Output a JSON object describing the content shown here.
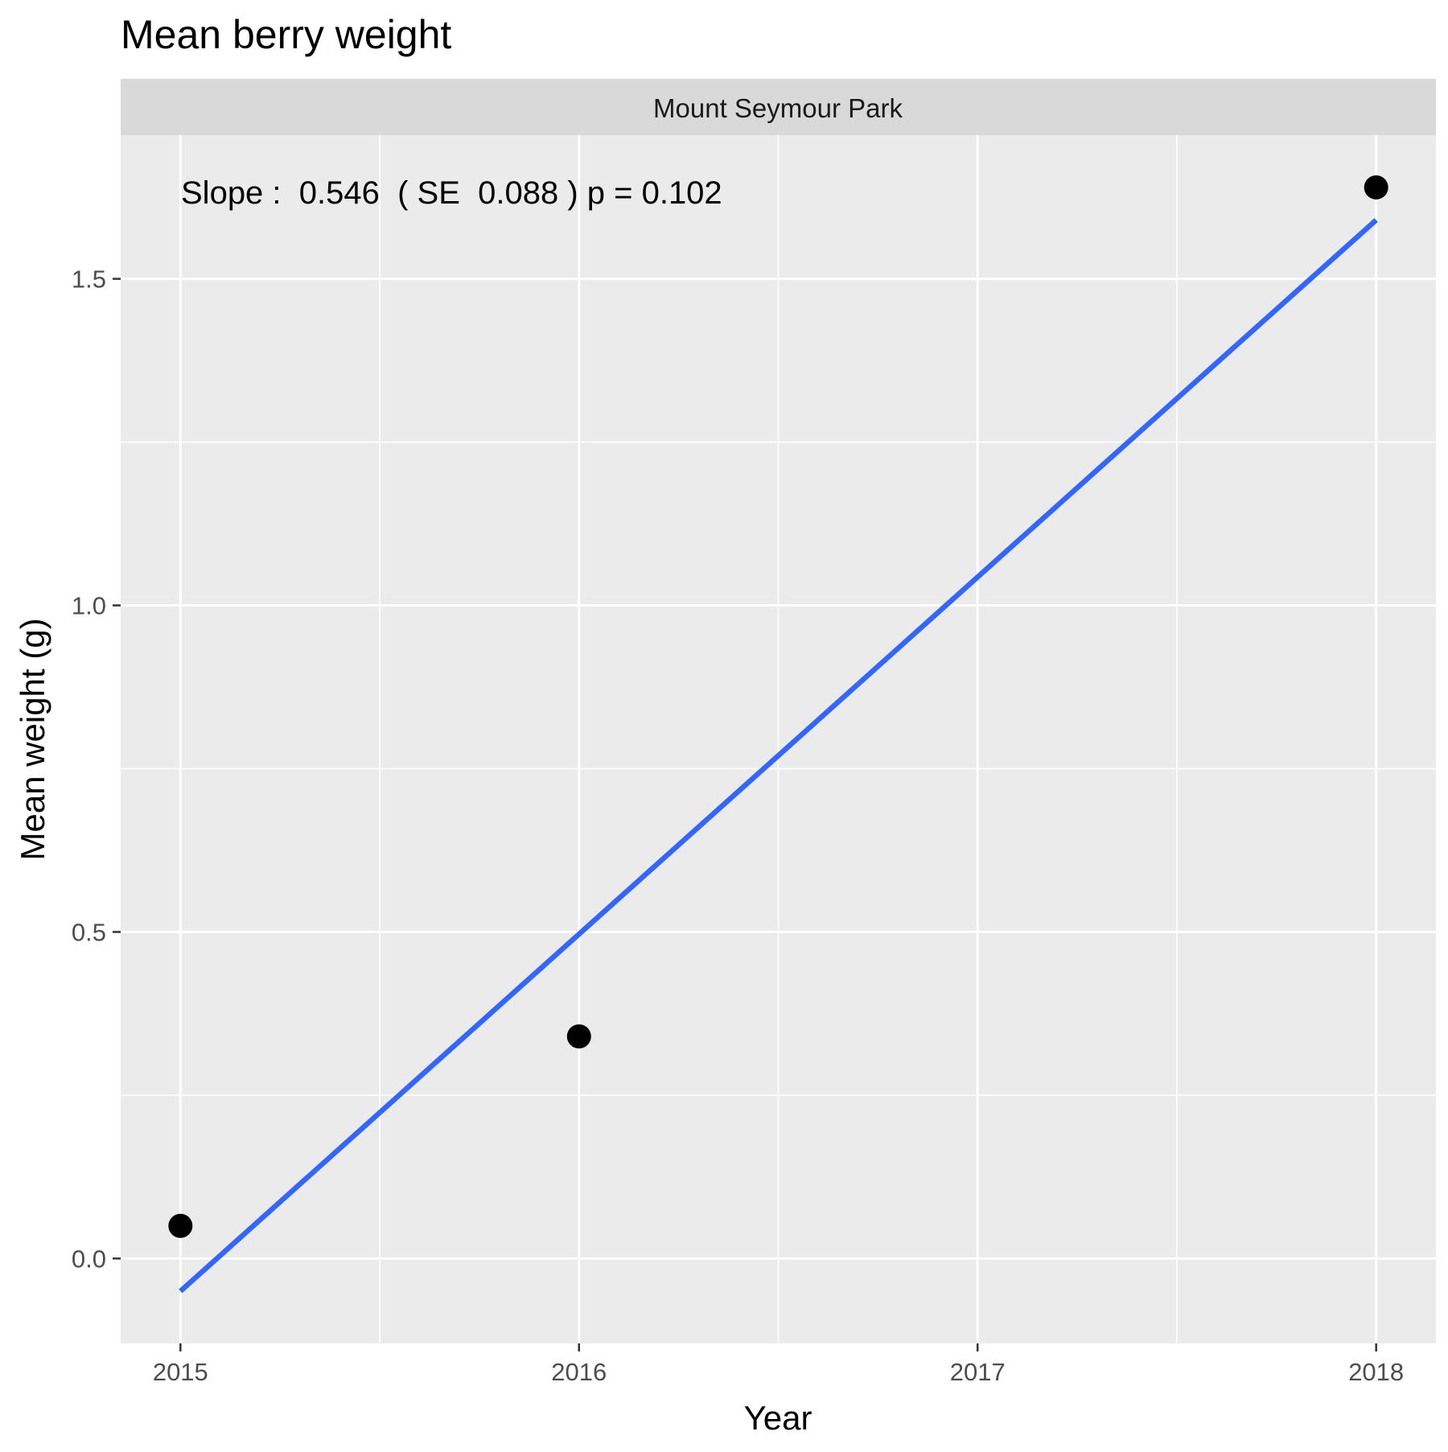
{
  "chart_data": {
    "type": "scatter",
    "title": "Mean berry weight",
    "facet_label": "Mount Seymour Park",
    "xlabel": "Year",
    "ylabel": "Mean weight (g)",
    "annotation": "Slope :  0.546  ( SE  0.088 ) p = 0.102",
    "xlim": [
      2014.85,
      2018.15
    ],
    "ylim": [
      -0.13,
      1.72
    ],
    "x_ticks": [
      2015,
      2016,
      2017,
      2018
    ],
    "x_tick_labels": [
      "2015",
      "2016",
      "2017",
      "2018"
    ],
    "y_ticks": [
      0.0,
      0.5,
      1.0,
      1.5
    ],
    "y_tick_labels": [
      "0.0",
      "0.5",
      "1.0",
      "1.5"
    ],
    "grid": true,
    "points": [
      {
        "x": 2015,
        "y": 0.05
      },
      {
        "x": 2016,
        "y": 0.34
      },
      {
        "x": 2018,
        "y": 1.64
      }
    ],
    "fit_line": {
      "x": [
        2015,
        2018
      ],
      "y": [
        -0.05,
        1.59
      ]
    },
    "colors": {
      "panel_bg": "#EBEBEB",
      "strip_bg": "#D9D9D9",
      "grid": "#FFFFFF",
      "point": "#000000",
      "fit_line": "#3366FF",
      "axis_text": "#4D4D4D",
      "text": "#1A1A1A"
    }
  }
}
